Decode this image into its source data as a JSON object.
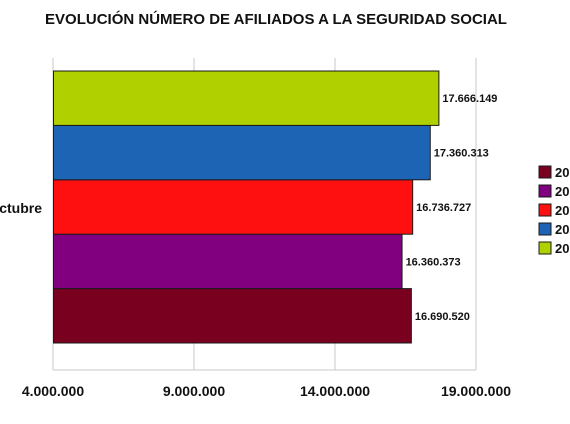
{
  "chart_data": {
    "type": "bar",
    "orientation": "horizontal",
    "title": "EVOLUCIÓN NÚMERO DE AFILIADOS A LA SEGURIDAD SOCIAL",
    "categories": [
      "Octubre"
    ],
    "category_label_visible": "ctubre",
    "xlim": [
      4000000,
      19000000
    ],
    "xticks": [
      4000000,
      9000000,
      14000000,
      19000000
    ],
    "xtick_labels": [
      "4.000.000",
      "9.000.000",
      "14.000.000",
      "19.000.000"
    ],
    "grid": "vertical",
    "legend_position": "right",
    "series": [
      {
        "name": "20",
        "color": "#7a0020",
        "values": [
          16690520
        ],
        "label": "16.690.520"
      },
      {
        "name": "20",
        "color": "#800080",
        "values": [
          16360373
        ],
        "label": "16.360.373"
      },
      {
        "name": "20",
        "color": "#ff1010",
        "values": [
          16736727
        ],
        "label": "16.736.727"
      },
      {
        "name": "20",
        "color": "#1e64b4",
        "values": [
          17360313
        ],
        "label": "17.360.313"
      },
      {
        "name": "20",
        "color": "#b0d000",
        "values": [
          17666149
        ],
        "label": "17.666.149"
      }
    ]
  }
}
